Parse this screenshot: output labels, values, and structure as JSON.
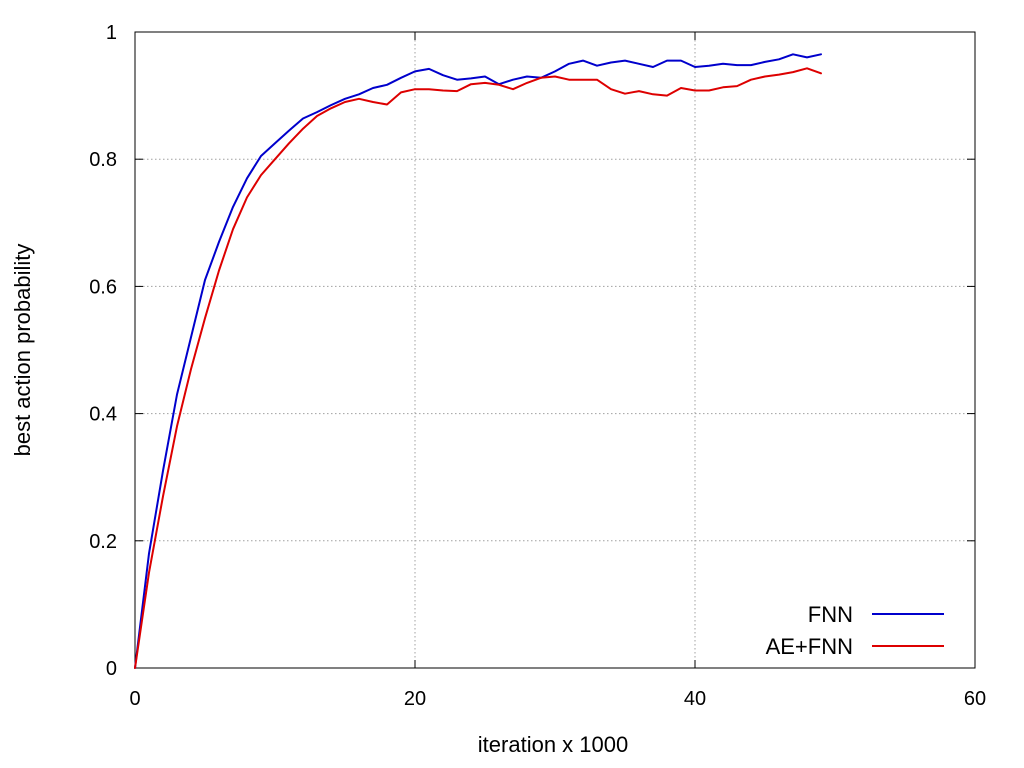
{
  "chart_data": {
    "type": "line",
    "title": "",
    "xlabel": "iteration x 1000",
    "ylabel": "best action probability",
    "xlim": [
      0,
      60
    ],
    "ylim": [
      0,
      1
    ],
    "x_ticks": [
      0,
      20,
      40,
      60
    ],
    "x_tick_labels": [
      "0",
      "20",
      "40",
      "60"
    ],
    "y_ticks": [
      0,
      0.2,
      0.4,
      0.6,
      0.8,
      1
    ],
    "y_tick_labels": [
      "0",
      "0.2",
      "0.4",
      "0.6",
      "0.8",
      "1"
    ],
    "grid": true,
    "legend_position": "bottom-right",
    "x": [
      0,
      1,
      2,
      3,
      4,
      5,
      6,
      7,
      8,
      9,
      10,
      11,
      12,
      13,
      14,
      15,
      16,
      17,
      18,
      19,
      20,
      21,
      22,
      23,
      24,
      25,
      26,
      27,
      28,
      29,
      30,
      31,
      32,
      33,
      34,
      35,
      36,
      37,
      38,
      39,
      40,
      41,
      42,
      43,
      44,
      45,
      46,
      47,
      48,
      49
    ],
    "series": [
      {
        "name": "FNN",
        "color": "#0000cc",
        "values": [
          0,
          0.18,
          0.31,
          0.43,
          0.52,
          0.61,
          0.67,
          0.725,
          0.77,
          0.805,
          0.825,
          0.845,
          0.864,
          0.874,
          0.885,
          0.895,
          0.902,
          0.912,
          0.917,
          0.928,
          0.938,
          0.942,
          0.932,
          0.925,
          0.927,
          0.93,
          0.918,
          0.925,
          0.93,
          0.928,
          0.938,
          0.95,
          0.955,
          0.947,
          0.952,
          0.955,
          0.95,
          0.945,
          0.955,
          0.955,
          0.945,
          0.947,
          0.95,
          0.948,
          0.948,
          0.953,
          0.957,
          0.965,
          0.96,
          0.965
        ]
      },
      {
        "name": "AE+FNN",
        "color": "#dd0000",
        "values": [
          0,
          0.15,
          0.27,
          0.38,
          0.47,
          0.55,
          0.625,
          0.69,
          0.74,
          0.775,
          0.8,
          0.825,
          0.848,
          0.868,
          0.88,
          0.89,
          0.895,
          0.89,
          0.886,
          0.905,
          0.91,
          0.91,
          0.908,
          0.907,
          0.918,
          0.92,
          0.917,
          0.91,
          0.92,
          0.928,
          0.93,
          0.925,
          0.925,
          0.925,
          0.91,
          0.903,
          0.907,
          0.902,
          0.9,
          0.912,
          0.908,
          0.908,
          0.913,
          0.915,
          0.925,
          0.93,
          0.933,
          0.937,
          0.943,
          0.935
        ]
      }
    ]
  }
}
